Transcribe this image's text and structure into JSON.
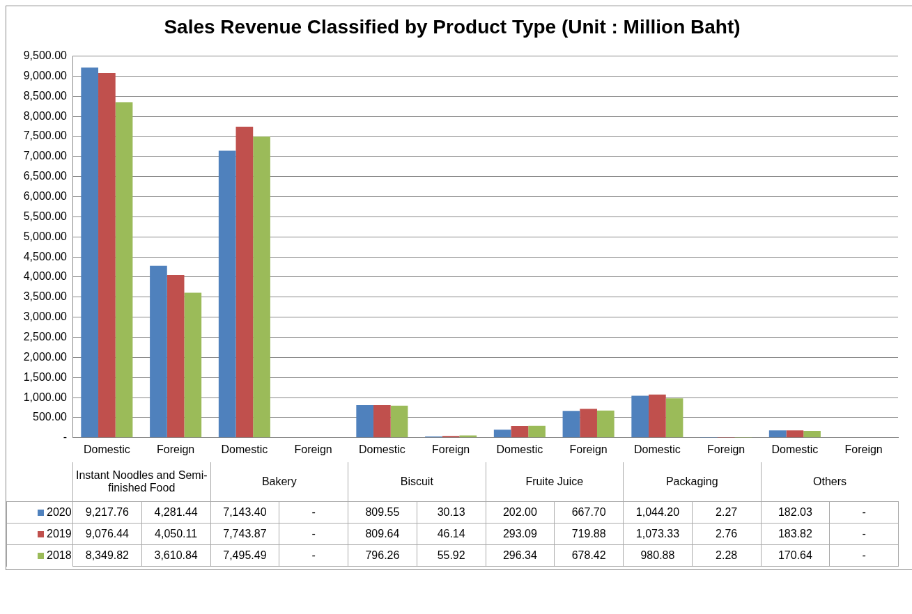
{
  "chart_data": {
    "type": "bar",
    "title": "Sales Revenue Classified by Product Type (Unit : Million Baht)",
    "categories": [
      "Domestic",
      "Foreign",
      "Domestic",
      "Foreign",
      "Domestic",
      "Foreign",
      "Domestic",
      "Foreign",
      "Domestic",
      "Foreign",
      "Domestic",
      "Foreign"
    ],
    "annotations": [
      "Instant Noodles and Semi-finished Food",
      "Bakery",
      "Biscuit",
      "Fruite Juice",
      "Packaging",
      "Others"
    ],
    "series": [
      {
        "name": "2020",
        "color": "#4f81bd",
        "values": [
          9217.76,
          4281.44,
          7143.4,
          null,
          809.55,
          30.13,
          202.0,
          667.7,
          1044.2,
          2.27,
          182.03,
          null
        ],
        "value_labels": [
          "9,217.76",
          "4,281.44",
          "7,143.40",
          "-",
          "809.55",
          "30.13",
          "202.00",
          "667.70",
          "1,044.20",
          "2.27",
          "182.03",
          "-"
        ]
      },
      {
        "name": "2019",
        "color": "#c0504d",
        "values": [
          9076.44,
          4050.11,
          7743.87,
          null,
          809.64,
          46.14,
          293.09,
          719.88,
          1073.33,
          2.76,
          183.82,
          null
        ],
        "value_labels": [
          "9,076.44",
          "4,050.11",
          "7,743.87",
          "-",
          "809.64",
          "46.14",
          "293.09",
          "719.88",
          "1,073.33",
          "2.76",
          "183.82",
          "-"
        ]
      },
      {
        "name": "2018",
        "color": "#9bbb59",
        "values": [
          8349.82,
          3610.84,
          7495.49,
          null,
          796.26,
          55.92,
          296.34,
          678.42,
          980.88,
          2.28,
          170.64,
          null
        ],
        "value_labels": [
          "8,349.82",
          "3,610.84",
          "7,495.49",
          "-",
          "796.26",
          "55.92",
          "296.34",
          "678.42",
          "980.88",
          "2.28",
          "170.64",
          "-"
        ]
      }
    ],
    "ylim": [
      0,
      9500
    ],
    "yticks": [
      {
        "value": 0,
        "label": "-"
      },
      {
        "value": 500,
        "label": "500.00"
      },
      {
        "value": 1000,
        "label": "1,000.00"
      },
      {
        "value": 1500,
        "label": "1,500.00"
      },
      {
        "value": 2000,
        "label": "2,000.00"
      },
      {
        "value": 2500,
        "label": "2,500.00"
      },
      {
        "value": 3000,
        "label": "3,000.00"
      },
      {
        "value": 3500,
        "label": "3,500.00"
      },
      {
        "value": 4000,
        "label": "4,000.00"
      },
      {
        "value": 4500,
        "label": "4,500.00"
      },
      {
        "value": 5000,
        "label": "5,000.00"
      },
      {
        "value": 5500,
        "label": "5,500.00"
      },
      {
        "value": 6000,
        "label": "6,000.00"
      },
      {
        "value": 6500,
        "label": "6,500.00"
      },
      {
        "value": 7000,
        "label": "7,000.00"
      },
      {
        "value": 7500,
        "label": "7,500.00"
      },
      {
        "value": 8000,
        "label": "8,000.00"
      },
      {
        "value": 8500,
        "label": "8,500.00"
      },
      {
        "value": 9000,
        "label": "9,000.00"
      },
      {
        "value": 9500,
        "label": "9,500.00"
      }
    ],
    "grid": "y",
    "legend": "bottom"
  }
}
